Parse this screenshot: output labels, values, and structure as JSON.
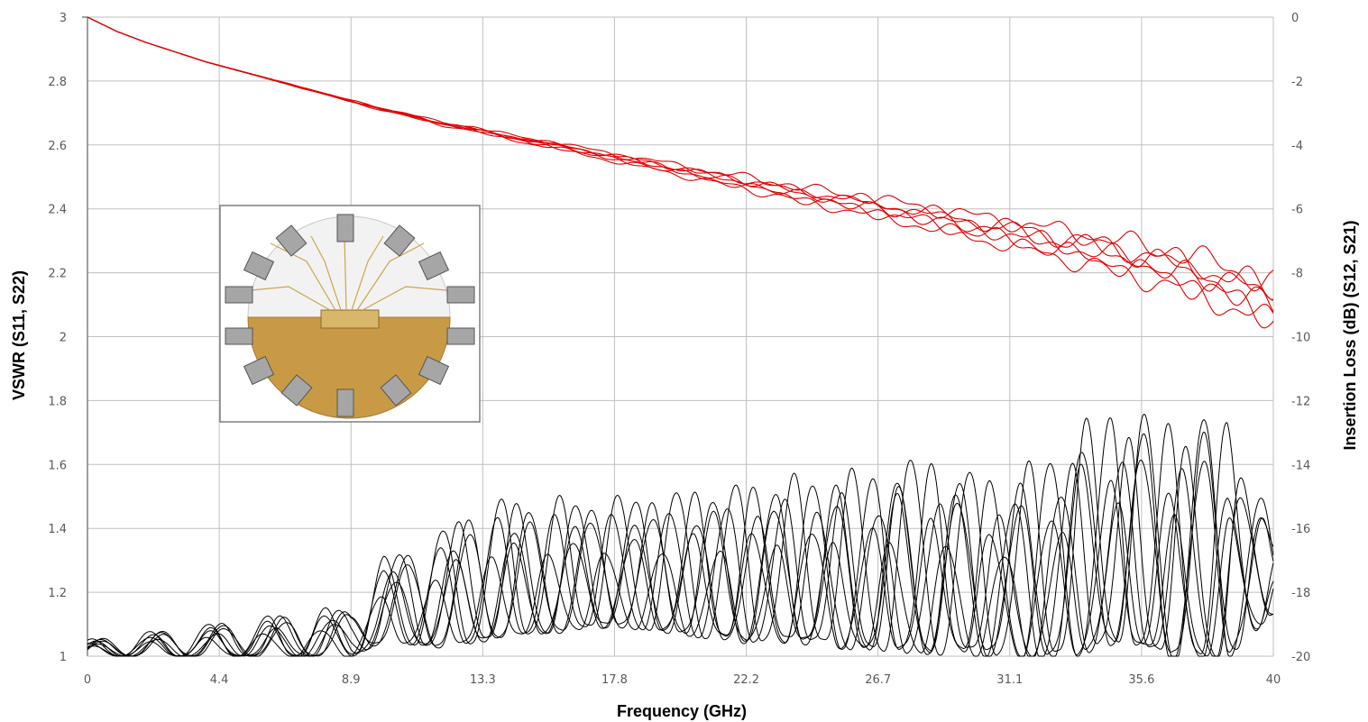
{
  "chart_data": {
    "type": "line",
    "xlabel": "Frequency (GHz)",
    "ylabel": "VSWR (S11, S22)",
    "y2label": "Insertion Loss (dB) (S12, S21)",
    "xlim": [
      0,
      40.05
    ],
    "ylim": [
      1,
      3
    ],
    "y2lim": [
      -20,
      0
    ],
    "x_ticks": [
      "0",
      "4.4",
      "8.9",
      "13.3",
      "17.8",
      "22.2",
      "26.7",
      "31.1",
      "35.6",
      "40"
    ],
    "x_tick_values": [
      0,
      4.45,
      8.9,
      13.35,
      17.8,
      22.25,
      26.7,
      31.15,
      35.6,
      40.05
    ],
    "y_ticks": [
      "1",
      "1.2",
      "1.4",
      "1.6",
      "1.8",
      "2",
      "2.2",
      "2.4",
      "2.6",
      "2.8",
      "3"
    ],
    "y2_ticks": [
      "-20",
      "-18",
      "-16",
      "-14",
      "-12",
      "-10",
      "-8",
      "-6",
      "-4",
      "-2",
      "0"
    ],
    "grid": true,
    "colors": {
      "insertion_loss": "#e00000",
      "vswr": "#000000",
      "grid": "#bfbfbf"
    },
    "inset_image": "8-port RF connector test fixture photo (circular board with SMA connectors)",
    "insertion_loss_series": {
      "axis": "right",
      "count": 6,
      "x": [
        0,
        1,
        2,
        3,
        4,
        5,
        6,
        7,
        8,
        9,
        10,
        11,
        12,
        13,
        14,
        15,
        16,
        17,
        18,
        19,
        20,
        21,
        22,
        23,
        24,
        25,
        26,
        27,
        28,
        29,
        30,
        31,
        32,
        33,
        34,
        35,
        36,
        37,
        38,
        39,
        40
      ],
      "y": [
        0,
        -0.45,
        -0.8,
        -1.1,
        -1.4,
        -1.65,
        -1.9,
        -2.15,
        -2.4,
        -2.65,
        -2.9,
        -3.1,
        -3.35,
        -3.5,
        -3.7,
        -3.9,
        -4.05,
        -4.25,
        -4.45,
        -4.6,
        -4.8,
        -5,
        -5.15,
        -5.35,
        -5.55,
        -5.7,
        -5.85,
        -6.05,
        -6.2,
        -6.4,
        -6.6,
        -6.75,
        -6.95,
        -7.15,
        -7.35,
        -7.55,
        -7.75,
        -8.0,
        -8.3,
        -8.6,
        -9.0
      ],
      "spread_db_at_40GHz": 1.2
    },
    "vswr_series": {
      "axis": "left",
      "count": 8,
      "envelope_x": [
        0,
        4.4,
        8.9,
        10,
        12,
        13.3,
        17.8,
        22.2,
        24,
        26.7,
        28,
        31.1,
        33,
        34.6,
        36.5,
        38.5,
        40
      ],
      "envelope_max": [
        1.05,
        1.1,
        1.15,
        1.3,
        1.38,
        1.47,
        1.48,
        1.52,
        1.54,
        1.56,
        1.6,
        1.53,
        1.65,
        1.75,
        1.71,
        1.73,
        1.4
      ],
      "envelope_min": [
        1,
        1,
        1,
        1.05,
        1.03,
        1.05,
        1.1,
        1.05,
        1.05,
        1.02,
        1.02,
        1.01,
        1.0,
        1.05,
        1.0,
        1.0,
        1.15
      ],
      "ripple_period_ghz": 2.0
    }
  }
}
